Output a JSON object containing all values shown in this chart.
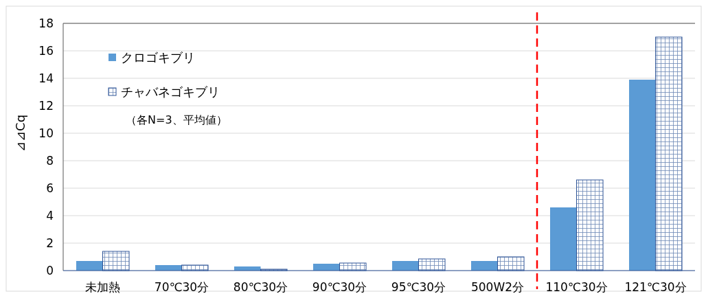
{
  "chart_data": {
    "type": "bar",
    "ylabel": "⊿⊿Cq",
    "categories": [
      "未加熱",
      "70℃30分",
      "80℃30分",
      "90℃30分",
      "95℃30分",
      "500W2分",
      "110℃30分",
      "121℃30分"
    ],
    "series": [
      {
        "name": "クロゴキブリ",
        "color": "#5b9bd5",
        "values": [
          0.7,
          0.4,
          0.3,
          0.5,
          0.7,
          0.7,
          4.6,
          13.9
        ]
      },
      {
        "name": "チャバネゴキブリ",
        "color": "#2f5597",
        "values": [
          1.4,
          0.4,
          0.1,
          0.55,
          0.85,
          1.0,
          6.6,
          17.0
        ]
      }
    ],
    "ylim": [
      0,
      18
    ],
    "yticks": [
      0,
      2,
      4,
      6,
      8,
      10,
      12,
      14,
      16,
      18
    ],
    "grid": "y",
    "legend": "top left",
    "annotations": [
      "（各N=3、平均値）"
    ]
  }
}
